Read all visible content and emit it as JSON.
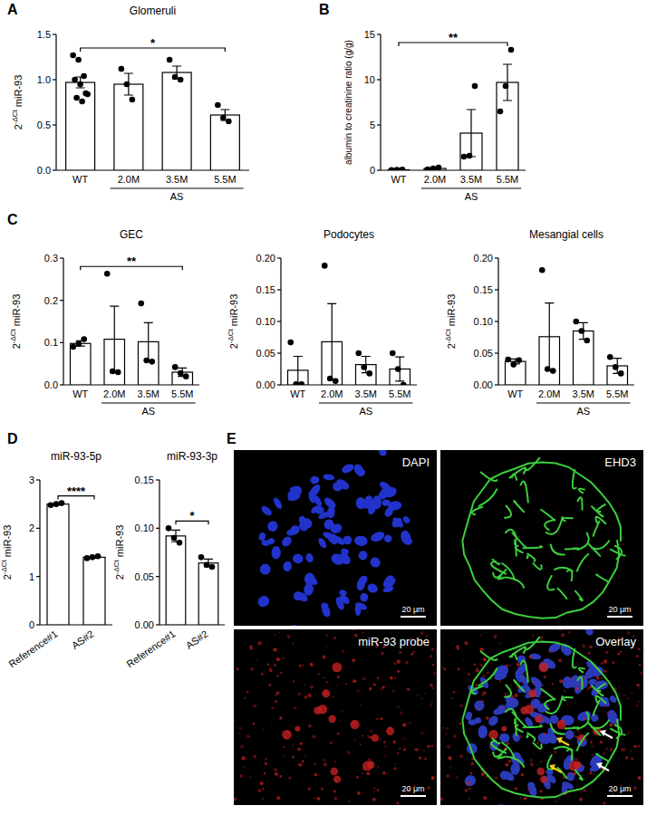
{
  "chart_data": [
    {
      "type": "bar",
      "title": "Glomeruli",
      "y_label": {
        "base": "2",
        "superscript": "-ΔCt",
        "text": "miR-93"
      },
      "categories": [
        "WT",
        "2.0M",
        "3.5M",
        "5.5M"
      ],
      "values": [
        0.97,
        0.95,
        1.08,
        0.61
      ],
      "errors": [
        0.06,
        0.12,
        0.07,
        0.06
      ],
      "points": [
        [
          1.27,
          1.22,
          1.04,
          1.0,
          0.95,
          0.85,
          0.8,
          0.76,
          0.84
        ],
        [
          1.12,
          0.95,
          0.78
        ],
        [
          1.22,
          1.03,
          1.0
        ],
        [
          0.72,
          0.58,
          0.54
        ]
      ],
      "color": "#ffffff",
      "ylim": [
        0,
        1.5
      ],
      "yticks": [
        {
          "value": 0,
          "label": "0.0"
        },
        0.5,
        {
          "value": 1,
          "label": "1.0"
        },
        1.5
      ],
      "group": {
        "label": "AS",
        "categories": [
          "2.0M",
          "3.5M",
          "5.5M"
        ]
      },
      "annotations": [
        {
          "text": "*",
          "from": "WT",
          "to": "5.5M"
        }
      ]
    },
    {
      "type": "bar",
      "y_label": "albumin to creatinine ratio (g/g)",
      "categories": [
        "WT",
        "2.0M",
        "3.5M",
        "5.5M"
      ],
      "values": [
        0.05,
        0.2,
        4.1,
        9.7
      ],
      "errors": [
        0.02,
        0.09,
        2.6,
        2.0
      ],
      "points": [
        [
          0.02,
          0.05,
          0.08
        ],
        [
          0.1,
          0.2,
          0.3
        ],
        [
          1.5,
          1.6,
          9.3
        ],
        [
          6.5,
          9.3,
          13.3
        ]
      ],
      "color": "#ffffff",
      "ylim": [
        0,
        15
      ],
      "yticks": [
        0,
        5,
        10,
        15
      ],
      "group": {
        "label": "AS",
        "categories": [
          "2.0M",
          "3.5M",
          "5.5M"
        ]
      },
      "annotations": [
        {
          "text": "**",
          "from": "WT",
          "to": "5.5M"
        }
      ]
    },
    {
      "type": "bar",
      "title": "GEC",
      "y_label": {
        "base": "2",
        "superscript": "-ΔCt",
        "text": "miR-93"
      },
      "categories": [
        "WT",
        "2.0M",
        "3.5M",
        "5.5M"
      ],
      "values": [
        0.098,
        0.108,
        0.102,
        0.03
      ],
      "errors": [
        0.006,
        0.078,
        0.045,
        0.01
      ],
      "points": [
        [
          0.09,
          0.097,
          0.108
        ],
        [
          0.263,
          0.032,
          0.03
        ],
        [
          0.193,
          0.058,
          0.055
        ],
        [
          0.042,
          0.028,
          0.02
        ]
      ],
      "color": "#ffffff",
      "ylim": [
        0,
        0.3
      ],
      "yticks": [
        {
          "value": 0,
          "label": "0.0"
        },
        0.1,
        0.2,
        0.3
      ],
      "group": {
        "label": "AS",
        "categories": [
          "2.0M",
          "3.5M",
          "5.5M"
        ]
      },
      "annotations": [
        {
          "text": "**",
          "from": "WT",
          "to": "5.5M"
        }
      ]
    },
    {
      "type": "bar",
      "title": "Podocytes",
      "y_label": {
        "base": "2",
        "superscript": "-ΔCt",
        "text": "miR-93"
      },
      "categories": [
        "WT",
        "2.0M",
        "3.5M",
        "5.5M"
      ],
      "values": [
        0.023,
        0.068,
        0.032,
        0.025
      ],
      "errors": [
        0.022,
        0.06,
        0.013,
        0.019
      ],
      "points": [
        [
          0.067,
          0.001,
          0.001
        ],
        [
          0.188,
          0.01,
          0.006
        ],
        [
          0.05,
          0.028,
          0.018
        ],
        [
          0.05,
          0.025,
          0.0
        ]
      ],
      "color": "#ffffff",
      "ylim": [
        0,
        0.2
      ],
      "yticks": [
        {
          "value": 0,
          "label": "0.00"
        },
        0.05,
        {
          "value": 0.1,
          "label": "0.10"
        },
        0.15,
        {
          "value": 0.2,
          "label": "0.20"
        }
      ],
      "group": {
        "label": "AS",
        "categories": [
          "2.0M",
          "3.5M",
          "5.5M"
        ]
      }
    },
    {
      "type": "bar",
      "title": "Mesangial cells",
      "y_label": {
        "base": "2",
        "superscript": "-ΔCt",
        "text": "miR-93"
      },
      "categories": [
        "WT",
        "2.0M",
        "3.5M",
        "5.5M"
      ],
      "values": [
        0.037,
        0.076,
        0.085,
        0.03
      ],
      "errors": [
        0.004,
        0.053,
        0.013,
        0.012
      ],
      "points": [
        [
          0.04,
          0.032,
          0.039
        ],
        [
          0.181,
          0.025,
          0.022
        ],
        [
          0.1,
          0.085,
          0.07
        ],
        [
          0.044,
          0.028,
          0.018
        ]
      ],
      "color": "#ffffff",
      "ylim": [
        0,
        0.2
      ],
      "yticks": [
        {
          "value": 0,
          "label": "0.00"
        },
        0.05,
        {
          "value": 0.1,
          "label": "0.10"
        },
        0.15,
        {
          "value": 0.2,
          "label": "0.20"
        }
      ],
      "group": {
        "label": "AS",
        "categories": [
          "2.0M",
          "3.5M",
          "5.5M"
        ]
      }
    },
    {
      "type": "bar",
      "title": "miR-93-5p",
      "y_label": {
        "base": "2",
        "superscript": "-ΔCt",
        "text": "miR-93"
      },
      "categories": [
        "Reference#1",
        "AS#2"
      ],
      "values": [
        2.5,
        1.4
      ],
      "errors": [
        0.02,
        0.02
      ],
      "points": [
        [
          2.48,
          2.5,
          2.52
        ],
        [
          1.38,
          1.4,
          1.42
        ]
      ],
      "color": "#ffffff",
      "ylim": [
        0,
        3
      ],
      "yticks": [
        0,
        1,
        2,
        3
      ],
      "annotations": [
        {
          "text": "****",
          "from": "Reference#1",
          "to": "AS#2"
        }
      ]
    },
    {
      "type": "bar",
      "title": "miR-93-3p",
      "y_label": {
        "base": "2",
        "superscript": "-ΔCt",
        "text": "miR-93"
      },
      "categories": [
        "Reference#1",
        "AS#2"
      ],
      "values": [
        0.092,
        0.064
      ],
      "errors": [
        0.006,
        0.004
      ],
      "points": [
        [
          0.1,
          0.09,
          0.085
        ],
        [
          0.07,
          0.062,
          0.06
        ]
      ],
      "color": "#ffffff",
      "ylim": [
        0,
        0.15
      ],
      "yticks": [
        {
          "value": 0,
          "label": "0.00"
        },
        0.05,
        {
          "value": 0.1,
          "label": "0.10"
        },
        0.15
      ],
      "annotations": [
        {
          "text": "*",
          "from": "Reference#1",
          "to": "AS#2"
        }
      ]
    }
  ],
  "panel_letters": [
    "A",
    "B",
    "C",
    "D",
    "E"
  ],
  "micrograph": {
    "images": [
      {
        "label": "DAPI",
        "scale_bar": "20 μm"
      },
      {
        "label": "EHD3",
        "scale_bar": "20 μm"
      },
      {
        "label": "miR-93 probe",
        "scale_bar": "20 μm"
      },
      {
        "label": "Overlay",
        "scale_bar": "20 μm"
      }
    ]
  }
}
